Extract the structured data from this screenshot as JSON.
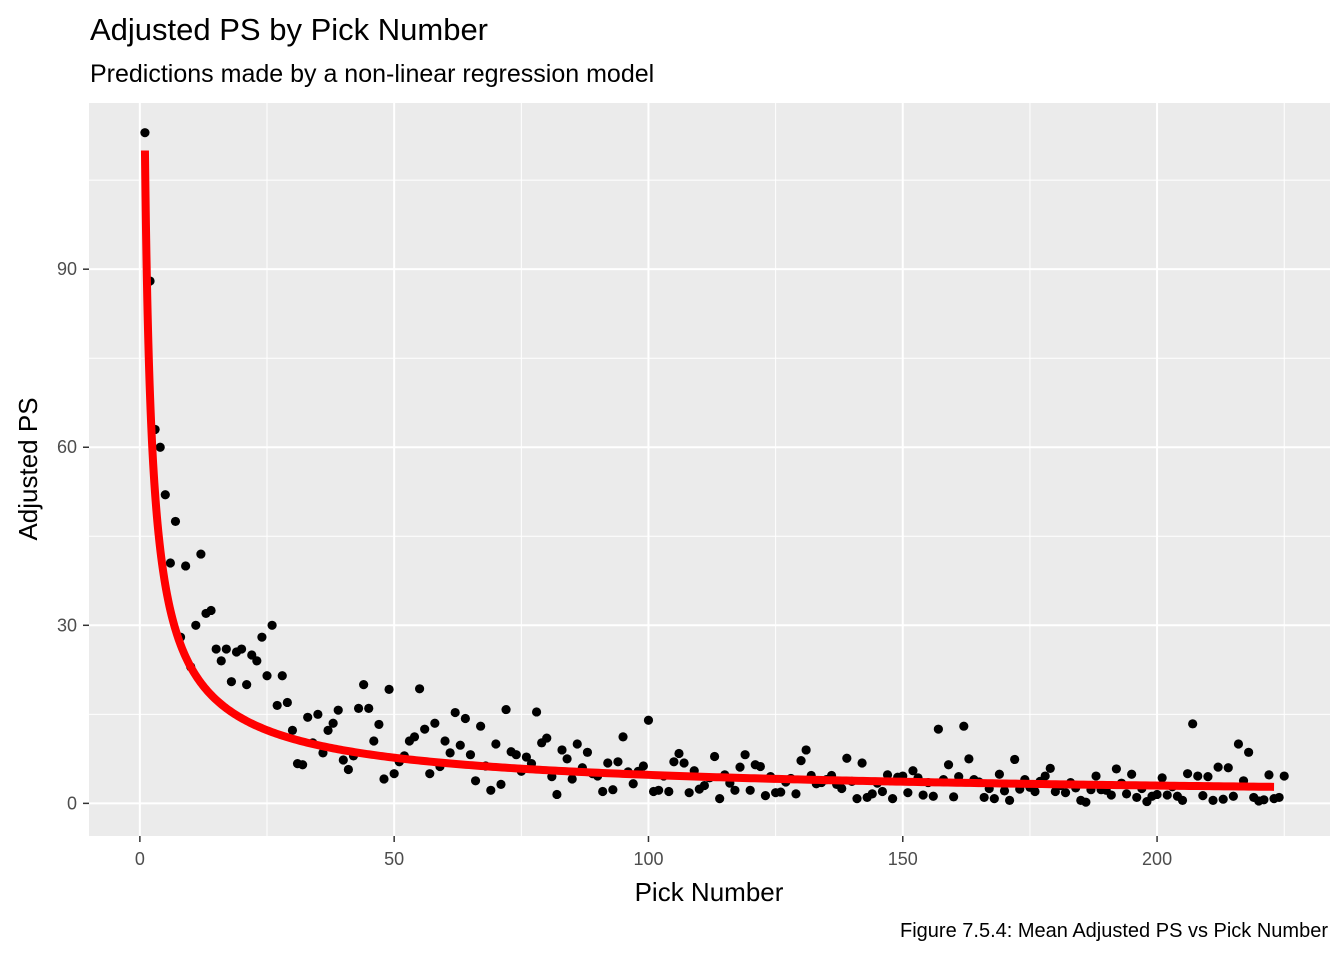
{
  "chart_data": {
    "type": "scatter",
    "title": "Adjusted PS by Pick Number",
    "subtitle": "Predictions made by a non-linear regression model",
    "caption": "Figure 7.5.4: Mean Adjusted PS vs Pick Number",
    "xlabel": "Pick Number",
    "ylabel": "Adjusted PS",
    "xlim": [
      -10,
      234
    ],
    "ylim": [
      -5.5,
      118
    ],
    "x_ticks": [
      0,
      50,
      100,
      150,
      200
    ],
    "y_ticks": [
      0,
      30,
      60,
      90
    ],
    "grid": true,
    "legend": "none",
    "colors": {
      "panel": "#ebebeb",
      "grid": "#ffffff",
      "points": "#000000",
      "fit_line": "#ff0000"
    },
    "fit_curve": {
      "type": "line",
      "equation": "y = 110 * x^-0.68",
      "x_range": [
        1,
        223
      ]
    },
    "points": [
      [
        1,
        113
      ],
      [
        2,
        88
      ],
      [
        3,
        63
      ],
      [
        4,
        60
      ],
      [
        5,
        52
      ],
      [
        6,
        40.5
      ],
      [
        7,
        47.5
      ],
      [
        8,
        28
      ],
      [
        9,
        40
      ],
      [
        10,
        23
      ],
      [
        11,
        30
      ],
      [
        12,
        42
      ],
      [
        13,
        32
      ],
      [
        14,
        32.5
      ],
      [
        15,
        26
      ],
      [
        16,
        24
      ],
      [
        17,
        26
      ],
      [
        18,
        20.5
      ],
      [
        19,
        25.5
      ],
      [
        20,
        26
      ],
      [
        21,
        20
      ],
      [
        22,
        25
      ],
      [
        23,
        24
      ],
      [
        24,
        28
      ],
      [
        25,
        21.5
      ],
      [
        26,
        30
      ],
      [
        27,
        16.5
      ],
      [
        28,
        21.5
      ],
      [
        29,
        17
      ],
      [
        30,
        12.3
      ],
      [
        31,
        6.7
      ],
      [
        32,
        6.5
      ],
      [
        33,
        14.5
      ],
      [
        34,
        10.2
      ],
      [
        35,
        15
      ],
      [
        36,
        8.5
      ],
      [
        37,
        12.3
      ],
      [
        38,
        13.5
      ],
      [
        39,
        15.7
      ],
      [
        40,
        7.3
      ],
      [
        41,
        5.7
      ],
      [
        42,
        8
      ],
      [
        43,
        16
      ],
      [
        44,
        20
      ],
      [
        45,
        16
      ],
      [
        46,
        10.5
      ],
      [
        47,
        13.3
      ],
      [
        48,
        4.1
      ],
      [
        49,
        19.2
      ],
      [
        50,
        5
      ],
      [
        51,
        7
      ],
      [
        52,
        8
      ],
      [
        53,
        10.5
      ],
      [
        54,
        11.2
      ],
      [
        55,
        19.3
      ],
      [
        56,
        12.5
      ],
      [
        57,
        5
      ],
      [
        58,
        13.5
      ],
      [
        59,
        6.2
      ],
      [
        60,
        10.5
      ],
      [
        61,
        8.5
      ],
      [
        62,
        15.3
      ],
      [
        63,
        9.8
      ],
      [
        64,
        14.3
      ],
      [
        65,
        8.2
      ],
      [
        66,
        3.8
      ],
      [
        67,
        13
      ],
      [
        68,
        6.3
      ],
      [
        69,
        2.2
      ],
      [
        70,
        10
      ],
      [
        71,
        3.2
      ],
      [
        72,
        15.8
      ],
      [
        73,
        8.7
      ],
      [
        74,
        8.2
      ],
      [
        75,
        5.4
      ],
      [
        76,
        7.8
      ],
      [
        77,
        6.7
      ],
      [
        78,
        15.4
      ],
      [
        79,
        10.2
      ],
      [
        80,
        11
      ],
      [
        81,
        4.5
      ],
      [
        82,
        1.5
      ],
      [
        83,
        9
      ],
      [
        84,
        7.5
      ],
      [
        85,
        4.1
      ],
      [
        86,
        10
      ],
      [
        87,
        6
      ],
      [
        88,
        8.6
      ],
      [
        89,
        5
      ],
      [
        90,
        4.6
      ],
      [
        91,
        2
      ],
      [
        92,
        6.8
      ],
      [
        93,
        2.3
      ],
      [
        94,
        7
      ],
      [
        95,
        11.2
      ],
      [
        96,
        5.3
      ],
      [
        97,
        3.3
      ],
      [
        98,
        5.4
      ],
      [
        99,
        6.3
      ],
      [
        100,
        14
      ],
      [
        101,
        2
      ],
      [
        102,
        2.2
      ],
      [
        103,
        4.6
      ],
      [
        104,
        2
      ],
      [
        105,
        7
      ],
      [
        106,
        8.4
      ],
      [
        107,
        6.8
      ],
      [
        108,
        1.8
      ],
      [
        109,
        5.5
      ],
      [
        110,
        2.4
      ],
      [
        111,
        3
      ],
      [
        112,
        4.3
      ],
      [
        113,
        7.9
      ],
      [
        114,
        0.8
      ],
      [
        115,
        4.8
      ],
      [
        116,
        3.4
      ],
      [
        117,
        2.2
      ],
      [
        118,
        6.1
      ],
      [
        119,
        8.2
      ],
      [
        120,
        2.2
      ],
      [
        121,
        6.5
      ],
      [
        122,
        6.2
      ],
      [
        123,
        1.3
      ],
      [
        124,
        4.5
      ],
      [
        125,
        1.8
      ],
      [
        126,
        1.9
      ],
      [
        127,
        3.6
      ],
      [
        128,
        4.2
      ],
      [
        129,
        1.6
      ],
      [
        130,
        7.2
      ],
      [
        131,
        9
      ],
      [
        132,
        4.7
      ],
      [
        133,
        3.3
      ],
      [
        134,
        3.5
      ],
      [
        135,
        4
      ],
      [
        136,
        4.7
      ],
      [
        137,
        3.2
      ],
      [
        138,
        2.5
      ],
      [
        139,
        7.6
      ],
      [
        140,
        3.7
      ],
      [
        141,
        0.8
      ],
      [
        142,
        6.8
      ],
      [
        143,
        1
      ],
      [
        144,
        1.6
      ],
      [
        145,
        3.4
      ],
      [
        146,
        2
      ],
      [
        147,
        4.8
      ],
      [
        148,
        0.8
      ],
      [
        149,
        4.4
      ],
      [
        150,
        4.6
      ],
      [
        151,
        1.8
      ],
      [
        152,
        5.5
      ],
      [
        153,
        4.3
      ],
      [
        154,
        1.4
      ],
      [
        155,
        3.5
      ],
      [
        156,
        1.2
      ],
      [
        157,
        12.5
      ],
      [
        158,
        4
      ],
      [
        159,
        6.5
      ],
      [
        160,
        1.1
      ],
      [
        161,
        4.5
      ],
      [
        162,
        13
      ],
      [
        163,
        7.5
      ],
      [
        164,
        4
      ],
      [
        165,
        3.6
      ],
      [
        166,
        1
      ],
      [
        167,
        2.5
      ],
      [
        168,
        0.8
      ],
      [
        169,
        4.9
      ],
      [
        170,
        2.1
      ],
      [
        171,
        0.5
      ],
      [
        172,
        7.4
      ],
      [
        173,
        2.4
      ],
      [
        174,
        4
      ],
      [
        175,
        2.7
      ],
      [
        176,
        2
      ],
      [
        177,
        3.7
      ],
      [
        178,
        4.6
      ],
      [
        179,
        5.9
      ],
      [
        180,
        2
      ],
      [
        181,
        3
      ],
      [
        182,
        1.8
      ],
      [
        183,
        3.5
      ],
      [
        184,
        2.6
      ],
      [
        185,
        0.5
      ],
      [
        186,
        0.2
      ],
      [
        187,
        2.3
      ],
      [
        188,
        4.6
      ],
      [
        189,
        2.3
      ],
      [
        190,
        2.2
      ],
      [
        191,
        1.4
      ],
      [
        192,
        5.8
      ],
      [
        193,
        3.4
      ],
      [
        194,
        1.6
      ],
      [
        195,
        4.9
      ],
      [
        196,
        1
      ],
      [
        197,
        2.5
      ],
      [
        198,
        0.3
      ],
      [
        199,
        1.2
      ],
      [
        200,
        1.5
      ],
      [
        201,
        4.3
      ],
      [
        202,
        1.4
      ],
      [
        203,
        2.8
      ],
      [
        204,
        1.2
      ],
      [
        205,
        0.5
      ],
      [
        206,
        5
      ],
      [
        207,
        13.4
      ],
      [
        208,
        4.6
      ],
      [
        209,
        1.3
      ],
      [
        210,
        4.5
      ],
      [
        211,
        0.5
      ],
      [
        212,
        6.1
      ],
      [
        213,
        0.7
      ],
      [
        214,
        6
      ],
      [
        215,
        1.2
      ],
      [
        216,
        10
      ],
      [
        217,
        3.8
      ],
      [
        218,
        8.6
      ],
      [
        219,
        1
      ],
      [
        220,
        0.4
      ],
      [
        221,
        0.6
      ],
      [
        222,
        4.8
      ],
      [
        223,
        0.8
      ],
      [
        224,
        1
      ],
      [
        225,
        4.6
      ]
    ]
  }
}
